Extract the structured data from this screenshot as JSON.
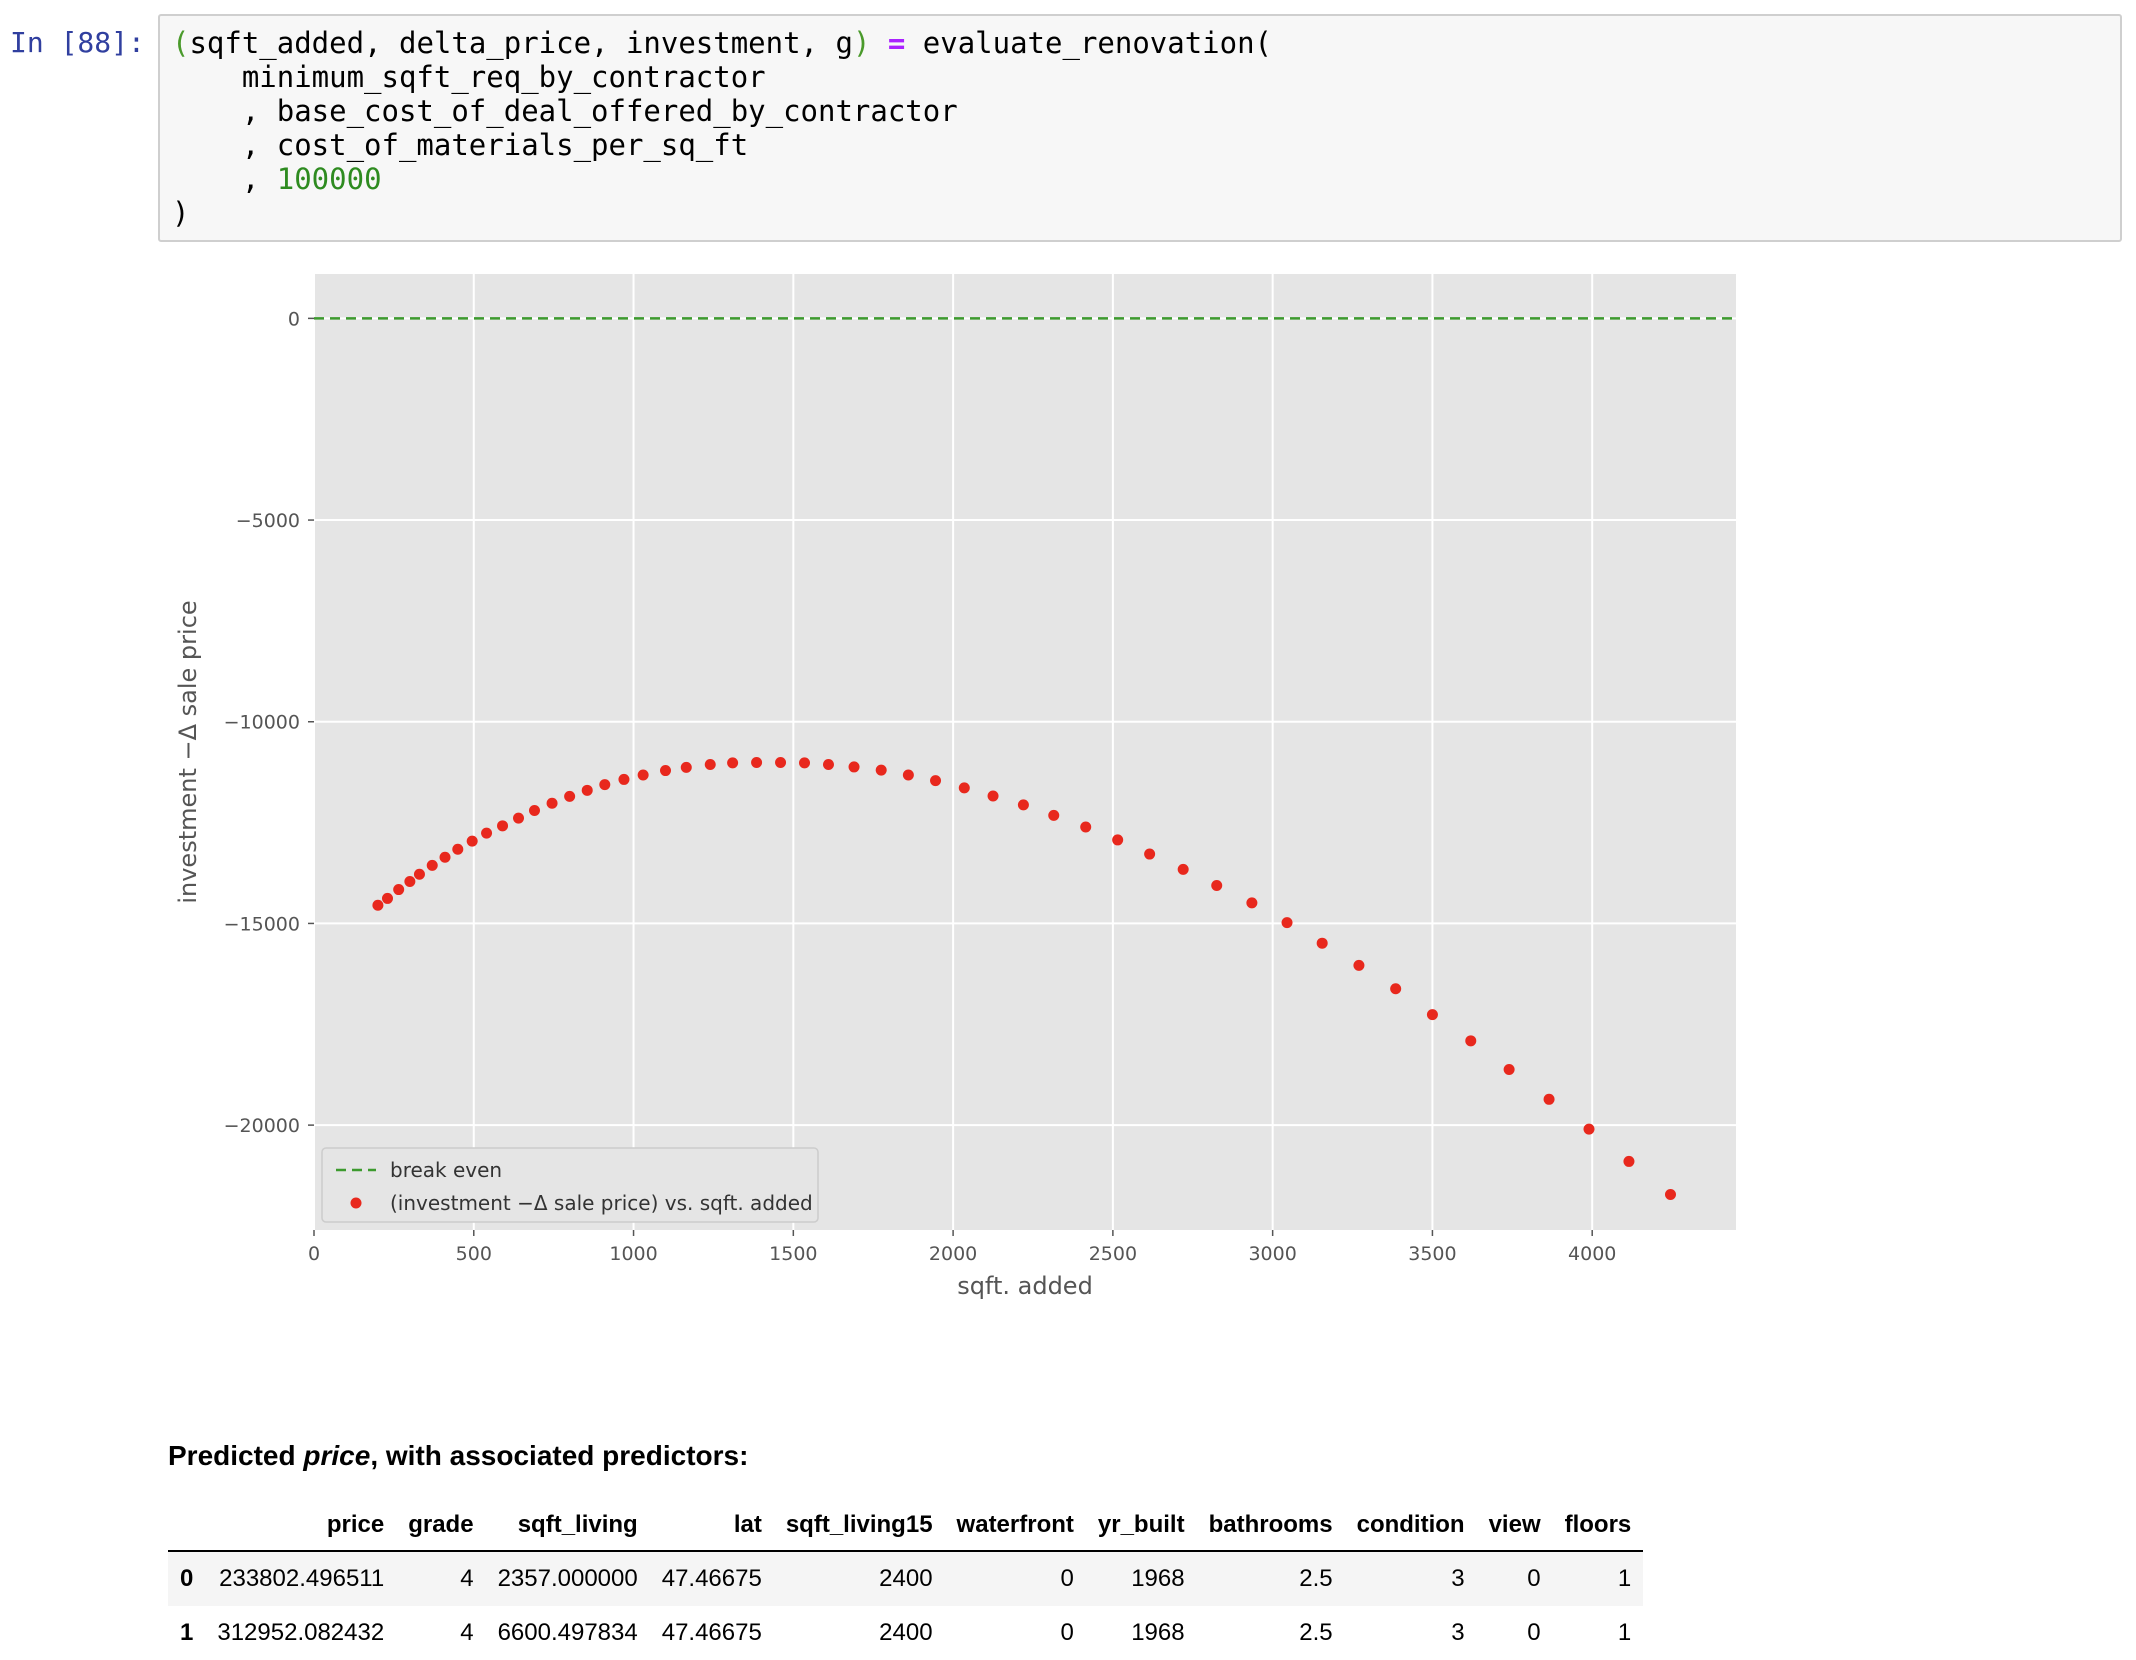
{
  "cell": {
    "prompt": "In [88]:",
    "code_lines": [
      [
        "(",
        "sqft_added, delta_price, investment, g",
        ")",
        " ",
        "=",
        " evaluate_renovation("
      ],
      [
        "    minimum_sqft_req_by_contractor"
      ],
      [
        "    , base_cost_of_deal_offered_by_contractor"
      ],
      [
        "    , cost_of_materials_per_sq_ft"
      ],
      [
        "    , ",
        "100000"
      ],
      [
        ")"
      ]
    ]
  },
  "colors": {
    "plot_bg": "#e5e5e5",
    "grid": "#ffffff",
    "scatter": "#e8281d",
    "break_even": "#3d9a2e",
    "prompt": "#303F9F"
  },
  "chart_data": {
    "type": "scatter",
    "xlabel": "sqft. added",
    "ylabel": "investment −Δ sale price",
    "xlim": [
      0,
      4450
    ],
    "ylim": [
      -22600,
      1100
    ],
    "xticks": [
      0,
      500,
      1000,
      1500,
      2000,
      2500,
      3000,
      3500,
      4000
    ],
    "xtick_labels": [
      "0",
      "500",
      "1000",
      "1500",
      "2000",
      "2500",
      "3000",
      "3500",
      "4000"
    ],
    "yticks": [
      0,
      -5000,
      -10000,
      -15000,
      -20000
    ],
    "ytick_labels": [
      "0",
      "−5000",
      "−10000",
      "−15000",
      "−20000"
    ],
    "grid": true,
    "legend_position": "lower-left",
    "legend": [
      "break even",
      "(investment −Δ sale price) vs. sqft. added"
    ],
    "hline": {
      "y": 0,
      "style": "dashed",
      "name": "break even"
    },
    "series": [
      {
        "name": "(investment −Δ sale price) vs. sqft. added",
        "x": [
          200,
          230,
          265,
          300,
          330,
          370,
          410,
          450,
          495,
          540,
          590,
          640,
          690,
          745,
          800,
          855,
          910,
          970,
          1030,
          1100,
          1165,
          1240,
          1310,
          1385,
          1460,
          1535,
          1610,
          1690,
          1775,
          1860,
          1945,
          2035,
          2125,
          2220,
          2315,
          2415,
          2515,
          2615,
          2720,
          2825,
          2935,
          3045,
          3155,
          3270,
          3385,
          3500,
          3620,
          3740,
          3865,
          3990,
          4115,
          4245
        ],
        "y": [
          -14550,
          -14380,
          -14160,
          -13960,
          -13780,
          -13560,
          -13360,
          -13160,
          -12960,
          -12760,
          -12580,
          -12390,
          -12200,
          -12020,
          -11850,
          -11700,
          -11560,
          -11430,
          -11320,
          -11210,
          -11130,
          -11060,
          -11020,
          -11010,
          -11010,
          -11020,
          -11060,
          -11120,
          -11200,
          -11320,
          -11460,
          -11640,
          -11840,
          -12060,
          -12320,
          -12610,
          -12930,
          -13280,
          -13660,
          -14060,
          -14490,
          -14980,
          -15490,
          -16040,
          -16620,
          -17260,
          -17910,
          -18620,
          -19360,
          -20100,
          -20900,
          -21720
        ]
      }
    ]
  },
  "table": {
    "title_bold": "Predicted ",
    "title_italic": "price",
    "title_rest": ", with associated predictors:",
    "columns": [
      "",
      "price",
      "grade",
      "sqft_living",
      "lat",
      "sqft_living15",
      "waterfront",
      "yr_built",
      "bathrooms",
      "condition",
      "view",
      "floors"
    ],
    "rows": [
      [
        "0",
        "233802.496511",
        "4",
        "2357.000000",
        "47.46675",
        "2400",
        "0",
        "1968",
        "2.5",
        "3",
        "0",
        "1"
      ],
      [
        "1",
        "312952.082432",
        "4",
        "6600.497834",
        "47.46675",
        "2400",
        "0",
        "1968",
        "2.5",
        "3",
        "0",
        "1"
      ]
    ]
  }
}
